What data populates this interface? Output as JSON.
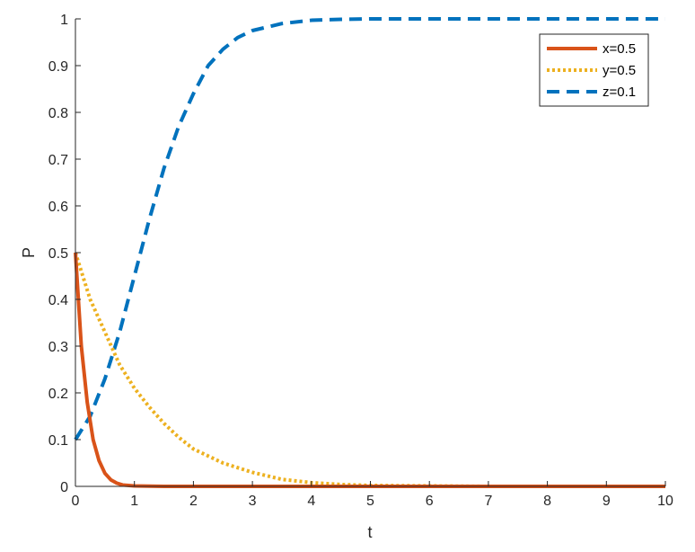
{
  "chart_data": {
    "type": "line",
    "xlabel": "t",
    "ylabel": "P",
    "xlim": [
      0,
      10
    ],
    "ylim": [
      0,
      1
    ],
    "xticks": [
      0,
      1,
      2,
      3,
      4,
      5,
      6,
      7,
      8,
      9,
      10
    ],
    "yticks": [
      0,
      0.1,
      0.2,
      0.3,
      0.4,
      0.5,
      0.6,
      0.7,
      0.8,
      0.9,
      1
    ],
    "grid": false,
    "legend_position": "top-right",
    "series": [
      {
        "name": "x=0.5",
        "color": "#D95319",
        "style": "solid",
        "x": [
          0,
          0.1,
          0.2,
          0.3,
          0.4,
          0.5,
          0.6,
          0.7,
          0.8,
          1.0,
          1.5,
          2,
          3,
          4,
          5,
          6,
          7,
          8,
          9,
          10
        ],
        "y": [
          0.5,
          0.3,
          0.18,
          0.1,
          0.055,
          0.028,
          0.014,
          0.007,
          0.003,
          0.001,
          0,
          0,
          0,
          0,
          0,
          0,
          0,
          0,
          0,
          0
        ]
      },
      {
        "name": "y=0.5",
        "color": "#EDB120",
        "style": "dotted",
        "x": [
          0,
          0.25,
          0.5,
          0.75,
          1,
          1.25,
          1.5,
          1.75,
          2,
          2.5,
          3,
          3.5,
          4,
          4.5,
          5,
          6,
          7,
          8,
          9,
          10
        ],
        "y": [
          0.5,
          0.4,
          0.33,
          0.26,
          0.21,
          0.17,
          0.135,
          0.105,
          0.08,
          0.05,
          0.03,
          0.015,
          0.008,
          0.004,
          0.002,
          0.001,
          0,
          0,
          0,
          0
        ]
      },
      {
        "name": "z=0.1",
        "color": "#0072BD",
        "style": "dashed",
        "x": [
          0,
          0.25,
          0.5,
          0.75,
          1,
          1.25,
          1.5,
          1.75,
          2,
          2.25,
          2.5,
          2.75,
          3,
          3.5,
          4,
          4.5,
          5,
          6,
          7,
          8,
          9,
          10
        ],
        "y": [
          0.1,
          0.15,
          0.23,
          0.33,
          0.45,
          0.57,
          0.68,
          0.77,
          0.84,
          0.9,
          0.935,
          0.96,
          0.975,
          0.99,
          0.997,
          0.999,
          1,
          1,
          1,
          1,
          1,
          1
        ]
      }
    ]
  }
}
